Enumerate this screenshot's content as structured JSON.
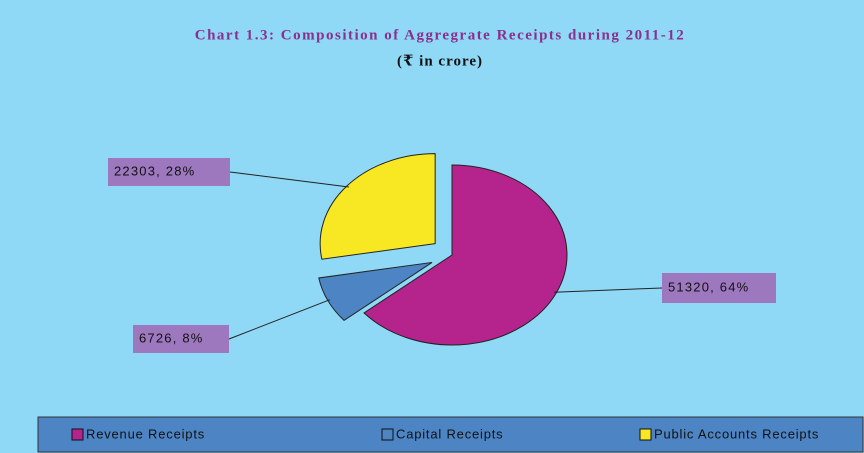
{
  "chart_data": {
    "type": "pie",
    "title": "Chart 1.3: Composition of Aggregrate Receipts during 2011-12",
    "subtitle": "(₹ in crore)",
    "categories": [
      "Revenue Receipts",
      "Capital Receipts",
      "Public Accounts Receipts"
    ],
    "values": [
      51320,
      6726,
      22303
    ],
    "value_labels": [
      "51320, 64%",
      "6726, 8%",
      "22303, 28%"
    ],
    "colors": [
      "#b5238c",
      "#4c84c4",
      "#f8e823"
    ],
    "legend": "bottom"
  }
}
